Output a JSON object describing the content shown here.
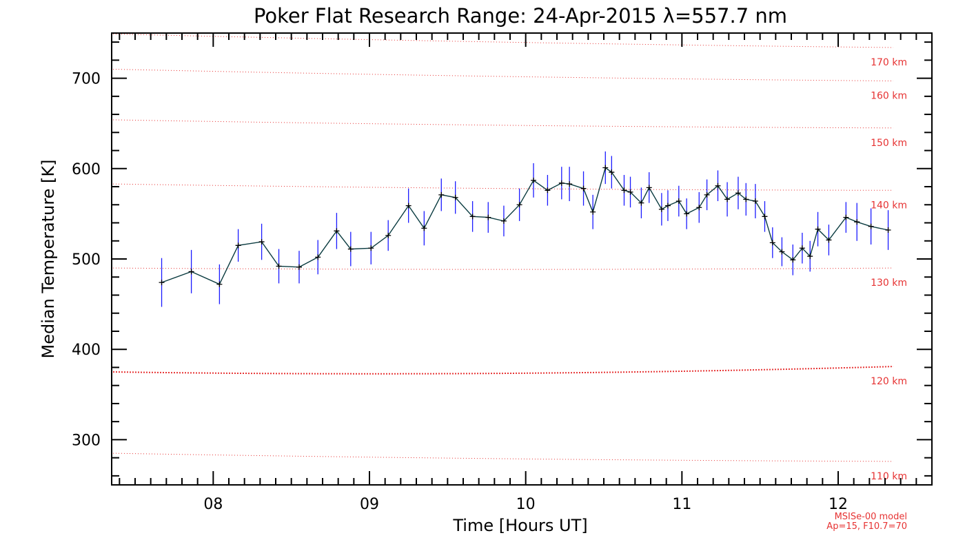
{
  "chart_data": {
    "type": "line",
    "title": "Poker Flat Research Range: 24-Apr-2015 λ=557.7 nm",
    "xlabel": "Time [Hours UT]",
    "ylabel": "Median Temperature [K]",
    "xlim": [
      7.35,
      12.6
    ],
    "ylim": [
      250,
      750
    ],
    "xticks": [
      {
        "value": 8,
        "label": "08"
      },
      {
        "value": 9,
        "label": "09"
      },
      {
        "value": 10,
        "label": "10"
      },
      {
        "value": 11,
        "label": "11"
      },
      {
        "value": 12,
        "label": "12"
      }
    ],
    "yticks": [
      {
        "value": 300,
        "label": "300"
      },
      {
        "value": 400,
        "label": "400"
      },
      {
        "value": 500,
        "label": "500"
      },
      {
        "value": 600,
        "label": "600"
      },
      {
        "value": 700,
        "label": "700"
      }
    ],
    "grid": false,
    "series": [
      {
        "color": "#0a3b40",
        "errorbar_color": "#1a1aff",
        "x": [
          7.67,
          7.86,
          8.04,
          8.16,
          8.31,
          8.42,
          8.55,
          8.67,
          8.79,
          8.88,
          9.01,
          9.12,
          9.25,
          9.35,
          9.46,
          9.55,
          9.66,
          9.76,
          9.86,
          9.96,
          10.05,
          10.14,
          10.23,
          10.28,
          10.37,
          10.43,
          10.51,
          10.55,
          10.63,
          10.67,
          10.74,
          10.79,
          10.87,
          10.91,
          10.98,
          11.03,
          11.11,
          11.16,
          11.23,
          11.29,
          11.36,
          11.41,
          11.47,
          11.53,
          11.58,
          11.64,
          11.71,
          11.77,
          11.82,
          11.87,
          11.94,
          12.05,
          12.12,
          12.21,
          12.32
        ],
        "y": [
          474,
          486,
          472,
          515,
          519,
          492,
          491,
          502,
          531,
          511,
          512,
          526,
          559,
          534,
          571,
          568,
          547,
          546,
          542,
          560,
          587,
          576,
          584,
          583,
          578,
          552,
          601,
          596,
          576,
          574,
          562,
          579,
          555,
          559,
          564,
          550,
          557,
          571,
          581,
          566,
          573,
          566,
          564,
          547,
          518,
          508,
          499,
          512,
          503,
          533,
          521,
          546,
          541,
          536,
          532
        ],
        "err": [
          27,
          24,
          22,
          18,
          20,
          19,
          18,
          19,
          20,
          19,
          18,
          17,
          19,
          19,
          18,
          18,
          17,
          17,
          17,
          18,
          19,
          17,
          18,
          19,
          19,
          19,
          18,
          18,
          17,
          17,
          17,
          17,
          18,
          17,
          17,
          17,
          17,
          17,
          17,
          19,
          18,
          18,
          19,
          17,
          17,
          16,
          17,
          17,
          17,
          19,
          17,
          17,
          21,
          20,
          22
        ]
      }
    ],
    "model_curves": [
      {
        "label": "110 km",
        "y_start": 285,
        "y_end": 276,
        "color": "#e63232",
        "emphasis": false
      },
      {
        "label": "120 km",
        "y_start": 375,
        "y_end": 381,
        "color": "#e63232",
        "emphasis": true
      },
      {
        "label": "130 km",
        "y_start": 490,
        "y_end": 490,
        "color": "#e63232",
        "emphasis": false
      },
      {
        "label": "140 km",
        "y_start": 583,
        "y_end": 576,
        "color": "#e63232",
        "emphasis": false
      },
      {
        "label": "150 km",
        "y_start": 654,
        "y_end": 645,
        "color": "#e63232",
        "emphasis": false
      },
      {
        "label": "160 km",
        "y_start": 710,
        "y_end": 697,
        "color": "#e63232",
        "emphasis": false
      },
      {
        "label": "170 km",
        "y_start": 749,
        "y_end": 734,
        "color": "#e63232",
        "emphasis": false
      }
    ],
    "model_note_lines": [
      "MSISe-00 model",
      "Ap=15, F10.7=70"
    ]
  }
}
